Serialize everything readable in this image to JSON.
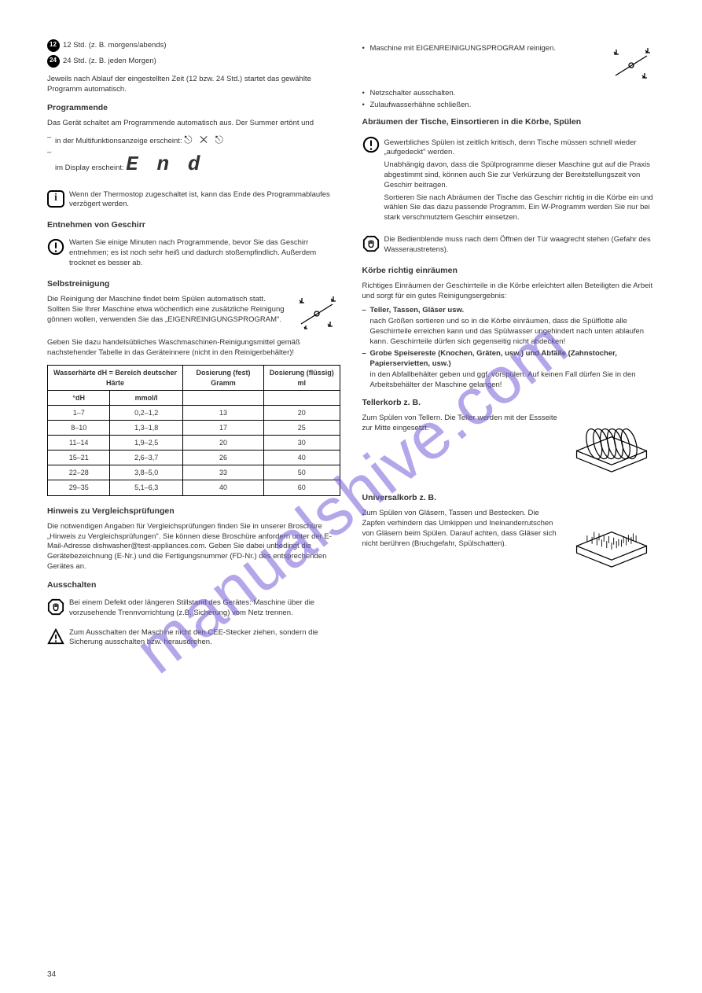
{
  "watermark_text": "manualshive.com",
  "page_number": "34",
  "left": {
    "clock_labels": [
      "12 Std. (z. B. morgens/abends)",
      "24 Std. (z. B. jeden Morgen)"
    ],
    "intro": "Jeweils nach Ablauf der eingestellten Zeit (12 bzw. 24 Std.) startet das gewählte Programm automatisch.",
    "end_heading": "Programmende",
    "end_p1": "Das Gerät schaltet am Programmende automatisch aus. Der Summer ertönt und",
    "end_items": [
      "in der Multifunktionsanzeige erscheint:",
      "im Display erscheint:"
    ],
    "info_text": "Wenn der Thermostop zugeschaltet ist, kann das Ende des Programmablaufes verzögert werden.",
    "open_heading": "Entnehmen von Geschirr",
    "open_p1": "Warten Sie einige Minuten nach Programmende, bevor Sie das Geschirr entnehmen; es ist noch sehr heiß und dadurch stoßempfindlich. Außerdem trocknet es besser ab.",
    "self_heading": "Selbstreinigung",
    "self_p1": "Die Reinigung der Maschine findet beim Spülen automatisch statt. Sollten Sie Ihrer Maschine etwa wöchentlich eine zusätzliche Reinigung gönnen wollen, verwenden Sie das „EIGENREINIGUNGSPROGRAM\".",
    "self_p2": "Geben Sie dazu handelsübliches Waschmaschinen-Reinigungsmittel gemäß nachstehender Tabelle in das Geräteinnere (nicht in den Reinigerbehälter)!",
    "table": {
      "headers": [
        "Wasserhärte\ndH = Bereich deutscher Härte",
        "Dosierung (fest) Gramm",
        "Dosierung (flüssig) ml"
      ],
      "subheaders": [
        "°dH",
        "mmol/l",
        "",
        ""
      ],
      "rows": [
        [
          "1–7",
          "0,2–1,2",
          "13",
          "20"
        ],
        [
          "8–10",
          "1,3–1,8",
          "17",
          "25"
        ],
        [
          "11–14",
          "1,9–2,5",
          "20",
          "30"
        ],
        [
          "15–21",
          "2,6–3,7",
          "26",
          "40"
        ],
        [
          "22–28",
          "3,8–5,0",
          "33",
          "50"
        ],
        [
          "29–35",
          "5,1–6,3",
          "40",
          "60"
        ]
      ]
    },
    "note_heading": "Hinweis zu Vergleichsprüfungen",
    "note_p1": "Die notwendigen Angaben für Vergleichsprüfungen finden Sie in unserer Broschüre „Hinweis zu Vergleichsprüfungen\". Sie können diese Broschüre anfordern unter der E-Mail-Adresse dishwasher@test-appliances.com. Geben Sie dabei unbedingt die Gerätebezeichnung (E-Nr.) und die Fertigungsnummer (FD-Nr.) des entsprechenden Gerätes an.",
    "unload_heading": "Ausschalten",
    "unload_warn": "Bei einem Defekt oder längeren Stillstand des Gerätes: Maschine über die vorzusehende Trennvorrichtung (z.B. Sicherung) vom Netz trennen.",
    "unload_tri": "Zum Ausschalten der Maschine nicht den CEE-Stecker ziehen, sondern die Sicherung ausschalten bzw. herausdrehen."
  },
  "right": {
    "intro_items": [
      "Maschine mit EIGENREINIGUNGSPROGRAM reinigen.",
      "Netzschalter ausschalten.",
      "Zulaufwasserhähne schließen."
    ],
    "care_heading": "Abräumen der Tische, Einsortieren in die Körbe, Spülen",
    "care_p1": "Gewerbliches Spülen ist zeitlich kritisch, denn Tische müssen schnell wieder „aufgedeckt\" werden.",
    "care_p2": "Unabhängig davon, dass die Spülprogramme dieser Maschine gut auf die Praxis abgestimmt sind, können auch Sie zur Verkürzung der Bereitstellungszeit von Geschirr beitragen.",
    "care_p3": "Sortieren Sie nach Abräumen der Tische das Geschirr richtig in die Körbe ein und wählen Sie das dazu passende Programm. Ein W-Programm werden Sie nur bei stark verschmutztem Geschirr einsetzen.",
    "stop_text": "Die Bedienblende muss nach dem Öffnen der Tür waagrecht stehen (Gefahr des Wasseraustretens).",
    "sort_heading": "Körbe richtig einräumen",
    "sort_p1": "Richtiges Einräumen der Geschirrteile in die Körbe erleichtert allen Beteiligten die Arbeit und sorgt für ein gutes Reinigungsergebnis:",
    "sort_items": [
      "Teller, Tassen, Gläser usw.",
      "nach Größen sortieren und so in die Körbe einräumen, dass die Spülflotte alle Geschirrteile erreichen kann und das Spülwasser ungehindert nach unten ablaufen kann. Geschirrteile dürfen sich gegenseitig nicht abdecken!",
      "Grobe Speisereste (Knochen, Gräten, usw.) und Abfälle (Zahnstocher, Papierservietten, usw.)",
      "in den Abfallbehälter geben und ggf. vorspülen. Auf keinen Fall dürfen Sie in den Arbeitsbehälter der Maschine gelangen!"
    ],
    "plate_heading": "Tellerkorb z. B.",
    "plate_p1": "Zum Spülen von Tellern. Die Teller werden mit der Essseite zur Mitte eingesetzt.",
    "glass_heading": "Universalkorb z. B.",
    "glass_p1": "Zum Spülen von Gläsern, Tassen und Bestecken. Die Zapfen verhindern das Umkippen und Ineinanderrutschen von Gläsern beim Spülen. Darauf achten, dass Gläser sich nicht berühren (Bruchgefahr, Spülschatten)."
  },
  "colors": {
    "text": "#333333",
    "watermark": "#7a5fd9",
    "border": "#000000",
    "bg": "#ffffff"
  }
}
